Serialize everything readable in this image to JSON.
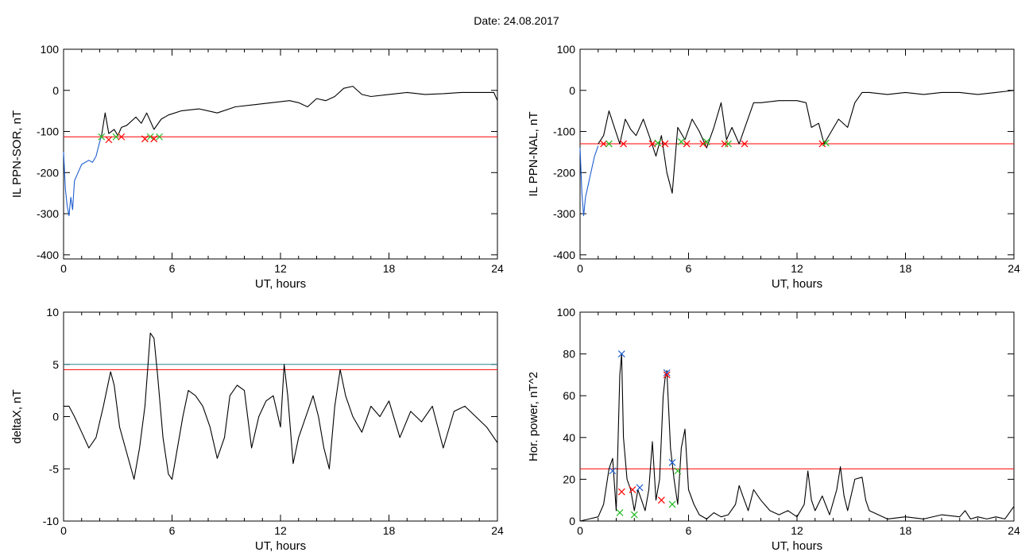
{
  "title": "Date:  24.08.2017",
  "colors": {
    "trace": "#000000",
    "threshold": "#ff0000",
    "blue": "#1f5fd0",
    "green": "#22bb22",
    "teal": "#2a8a9a"
  },
  "chart_data": [
    {
      "type": "line",
      "id": "p1",
      "ylabel": "IL PPN-SOR, nT",
      "xlabel": "UT, hours",
      "xlim": [
        0,
        24
      ],
      "ylim": [
        -410,
        100
      ],
      "xticks": [
        0,
        6,
        12,
        18,
        24
      ],
      "yticks": [
        100,
        0,
        -100,
        -200,
        -300,
        -400
      ],
      "hlines": [
        {
          "y": -113,
          "color": "#ff0000"
        }
      ],
      "series": [
        {
          "color": "#000000",
          "x": [
            2.1,
            2.3,
            2.5,
            2.8,
            3.0,
            3.2,
            3.5,
            4.0,
            4.3,
            4.6,
            5.0,
            5.4,
            5.8,
            6.5,
            7.5,
            8.5,
            9.5,
            10.5,
            11.5,
            12.5,
            13.0,
            13.5,
            14.0,
            14.5,
            15.0,
            15.5,
            16.0,
            16.5,
            17.0,
            18.0,
            19.0,
            20.0,
            21.0,
            22.0,
            23.0,
            23.8,
            24.0
          ],
          "y": [
            -110,
            -55,
            -105,
            -95,
            -110,
            -90,
            -85,
            -65,
            -80,
            -55,
            -95,
            -70,
            -60,
            -50,
            -45,
            -55,
            -40,
            -35,
            -30,
            -25,
            -30,
            -40,
            -20,
            -25,
            -15,
            5,
            10,
            -10,
            -15,
            -10,
            -5,
            -10,
            -8,
            -5,
            -5,
            -5,
            -25
          ]
        },
        {
          "color": "#1f5fd0",
          "x": [
            0,
            0.1,
            0.2,
            0.3,
            0.4,
            0.5,
            0.6,
            0.8,
            1.0,
            1.2,
            1.4,
            1.6,
            1.8,
            2.0,
            2.1
          ],
          "y": [
            -150,
            -240,
            -280,
            -305,
            -260,
            -290,
            -220,
            -200,
            -180,
            -175,
            -170,
            -175,
            -160,
            -125,
            -110
          ]
        }
      ],
      "markers": [
        {
          "x": 2.1,
          "y": -113,
          "color": "#22bb22"
        },
        {
          "x": 2.5,
          "y": -120,
          "color": "#ff0000"
        },
        {
          "x": 2.9,
          "y": -113,
          "color": "#22bb22"
        },
        {
          "x": 3.2,
          "y": -113,
          "color": "#ff0000"
        },
        {
          "x": 4.5,
          "y": -118,
          "color": "#ff0000"
        },
        {
          "x": 4.8,
          "y": -113,
          "color": "#22bb22"
        },
        {
          "x": 5.0,
          "y": -118,
          "color": "#ff0000"
        },
        {
          "x": 5.3,
          "y": -113,
          "color": "#22bb22"
        }
      ]
    },
    {
      "type": "line",
      "id": "p2",
      "ylabel": "IL PPN-NAL, nT",
      "xlabel": "UT, hours",
      "xlim": [
        0,
        24
      ],
      "ylim": [
        -410,
        100
      ],
      "xticks": [
        0,
        6,
        12,
        18,
        24
      ],
      "yticks": [
        100,
        0,
        -100,
        -200,
        -300,
        -400
      ],
      "hlines": [
        {
          "y": -130,
          "color": "#ff0000"
        }
      ],
      "series": [
        {
          "color": "#000000",
          "x": [
            1.0,
            1.3,
            1.6,
            1.9,
            2.2,
            2.5,
            2.8,
            3.1,
            3.5,
            3.9,
            4.2,
            4.5,
            4.8,
            5.1,
            5.4,
            5.8,
            6.2,
            6.6,
            7.0,
            7.4,
            7.8,
            8.1,
            8.4,
            8.8,
            9.2,
            9.6,
            10.0,
            11.0,
            12.0,
            12.5,
            12.8,
            13.2,
            13.5,
            13.9,
            14.3,
            14.8,
            15.2,
            15.6,
            16.0,
            17.0,
            18.0,
            19.0,
            20.0,
            21.0,
            22.0,
            23.0,
            24.0
          ],
          "y": [
            -130,
            -110,
            -50,
            -90,
            -130,
            -70,
            -95,
            -110,
            -70,
            -120,
            -160,
            -110,
            -200,
            -250,
            -90,
            -120,
            -70,
            -100,
            -140,
            -90,
            -30,
            -120,
            -90,
            -130,
            -80,
            -30,
            -30,
            -25,
            -25,
            -30,
            -90,
            -80,
            -130,
            -100,
            -70,
            -90,
            -30,
            -5,
            -5,
            -10,
            -5,
            -10,
            -5,
            -5,
            -10,
            -5,
            0
          ]
        },
        {
          "color": "#1f5fd0",
          "x": [
            0,
            0.1,
            0.2,
            0.3,
            0.4,
            0.6,
            0.8,
            1.0
          ],
          "y": [
            -140,
            -250,
            -305,
            -260,
            -240,
            -200,
            -160,
            -135
          ]
        }
      ],
      "markers": [
        {
          "x": 1.3,
          "y": -130,
          "color": "#ff0000"
        },
        {
          "x": 1.6,
          "y": -130,
          "color": "#22bb22"
        },
        {
          "x": 2.4,
          "y": -130,
          "color": "#ff0000"
        },
        {
          "x": 4.0,
          "y": -130,
          "color": "#ff0000"
        },
        {
          "x": 4.3,
          "y": -128,
          "color": "#22bb22"
        },
        {
          "x": 4.7,
          "y": -130,
          "color": "#ff0000"
        },
        {
          "x": 5.6,
          "y": -125,
          "color": "#22bb22"
        },
        {
          "x": 5.9,
          "y": -130,
          "color": "#ff0000"
        },
        {
          "x": 6.8,
          "y": -130,
          "color": "#ff0000"
        },
        {
          "x": 7.0,
          "y": -125,
          "color": "#22bb22"
        },
        {
          "x": 8.0,
          "y": -130,
          "color": "#ff0000"
        },
        {
          "x": 8.2,
          "y": -130,
          "color": "#22bb22"
        },
        {
          "x": 9.1,
          "y": -130,
          "color": "#ff0000"
        },
        {
          "x": 13.4,
          "y": -130,
          "color": "#ff0000"
        },
        {
          "x": 13.6,
          "y": -128,
          "color": "#22bb22"
        }
      ]
    },
    {
      "type": "line",
      "id": "p3",
      "ylabel": "deltaX, nT",
      "xlabel": "UT, hours",
      "xlim": [
        0,
        24
      ],
      "ylim": [
        -10,
        10
      ],
      "xticks": [
        0,
        6,
        12,
        18,
        24
      ],
      "yticks": [
        10,
        5,
        0,
        -5,
        -10
      ],
      "hlines": [
        {
          "y": 5.0,
          "color": "#2a8a9a"
        },
        {
          "y": 4.5,
          "color": "#ff0000"
        }
      ],
      "series": [
        {
          "color": "#000000",
          "x": [
            0,
            0.3,
            0.6,
            1.0,
            1.4,
            1.8,
            2.2,
            2.6,
            2.8,
            3.1,
            3.5,
            3.9,
            4.2,
            4.5,
            4.8,
            5.0,
            5.2,
            5.5,
            5.8,
            6.0,
            6.3,
            6.6,
            6.9,
            7.3,
            7.7,
            8.1,
            8.5,
            8.9,
            9.2,
            9.6,
            10.0,
            10.4,
            10.8,
            11.2,
            11.6,
            12.0,
            12.2,
            12.4,
            12.7,
            13.0,
            13.4,
            13.8,
            14.1,
            14.4,
            14.7,
            15.0,
            15.3,
            15.6,
            16.0,
            16.5,
            17.0,
            17.5,
            18.0,
            18.6,
            19.2,
            19.8,
            20.4,
            21.0,
            21.6,
            22.2,
            22.8,
            23.4,
            24.0
          ],
          "y": [
            1.0,
            1.0,
            0,
            -1.5,
            -3.0,
            -2.0,
            1.0,
            4.3,
            3.0,
            -1.0,
            -3.5,
            -6.0,
            -3.0,
            1.0,
            8.0,
            7.5,
            4.0,
            -2.0,
            -5.5,
            -6.0,
            -3.0,
            0.0,
            2.5,
            2.0,
            1.0,
            -1.0,
            -4.0,
            -2.0,
            2.0,
            3.0,
            2.5,
            -3.0,
            0.0,
            1.5,
            2.0,
            -1.0,
            5.0,
            2.0,
            -4.5,
            -2.0,
            0.0,
            2.0,
            0.0,
            -3.0,
            -5.0,
            1.0,
            4.5,
            2.0,
            0.0,
            -1.5,
            1.0,
            0.0,
            1.5,
            -2.0,
            0.5,
            -0.5,
            1.0,
            -3.0,
            0.5,
            1.0,
            0.0,
            -1.0,
            -2.5
          ]
        }
      ],
      "markers": []
    },
    {
      "type": "line",
      "id": "p4",
      "ylabel": "Hor. power, nT^2",
      "xlabel": "UT, hours",
      "xlim": [
        0,
        24
      ],
      "ylim": [
        0,
        100
      ],
      "xticks": [
        0,
        6,
        12,
        18,
        24
      ],
      "yticks": [
        100,
        80,
        60,
        40,
        20,
        0
      ],
      "hlines": [
        {
          "y": 25,
          "color": "#ff0000"
        }
      ],
      "series": [
        {
          "color": "#000000",
          "x": [
            0,
            0.5,
            1.0,
            1.3,
            1.6,
            1.8,
            2.0,
            2.2,
            2.3,
            2.4,
            2.6,
            2.8,
            3.0,
            3.2,
            3.4,
            3.6,
            3.8,
            4.0,
            4.2,
            4.4,
            4.6,
            4.7,
            4.8,
            5.0,
            5.2,
            5.4,
            5.6,
            5.8,
            6.0,
            6.3,
            6.6,
            7.0,
            7.4,
            7.8,
            8.2,
            8.6,
            8.8,
            9.0,
            9.3,
            9.6,
            10.0,
            10.5,
            11.0,
            11.5,
            12.0,
            12.4,
            12.6,
            12.8,
            13.0,
            13.4,
            13.8,
            14.2,
            14.4,
            14.6,
            14.8,
            15.2,
            15.6,
            15.8,
            16.0,
            16.5,
            17.0,
            18.0,
            19.0,
            20.0,
            21.0,
            21.3,
            21.6,
            22.0,
            22.5,
            23.0,
            23.5,
            24.0
          ],
          "y": [
            0,
            1,
            2,
            8,
            25,
            30,
            5,
            70,
            80,
            40,
            20,
            15,
            5,
            15,
            10,
            5,
            15,
            38,
            10,
            20,
            60,
            68,
            72,
            35,
            20,
            8,
            35,
            44,
            15,
            8,
            3,
            1,
            4,
            2,
            3,
            8,
            17,
            12,
            5,
            15,
            10,
            5,
            3,
            5,
            2,
            8,
            24,
            10,
            5,
            12,
            3,
            15,
            26,
            12,
            5,
            20,
            21,
            10,
            5,
            3,
            1,
            2,
            1,
            3,
            2,
            5,
            1,
            2,
            1,
            2,
            1,
            7
          ]
        }
      ],
      "markers": [
        {
          "x": 1.8,
          "y": 24,
          "color": "#1f5fd0"
        },
        {
          "x": 2.2,
          "y": 4,
          "color": "#22bb22"
        },
        {
          "x": 2.3,
          "y": 14,
          "color": "#ff0000"
        },
        {
          "x": 2.3,
          "y": 80,
          "color": "#1f5fd0"
        },
        {
          "x": 2.9,
          "y": 15,
          "color": "#ff0000"
        },
        {
          "x": 3.0,
          "y": 3,
          "color": "#22bb22"
        },
        {
          "x": 3.3,
          "y": 16,
          "color": "#1f5fd0"
        },
        {
          "x": 4.5,
          "y": 10,
          "color": "#ff0000"
        },
        {
          "x": 4.8,
          "y": 71,
          "color": "#1f5fd0"
        },
        {
          "x": 4.8,
          "y": 70,
          "color": "#ff0000"
        },
        {
          "x": 5.1,
          "y": 28,
          "color": "#1f5fd0"
        },
        {
          "x": 5.1,
          "y": 8,
          "color": "#22bb22"
        },
        {
          "x": 5.4,
          "y": 24,
          "color": "#22bb22"
        }
      ]
    }
  ]
}
